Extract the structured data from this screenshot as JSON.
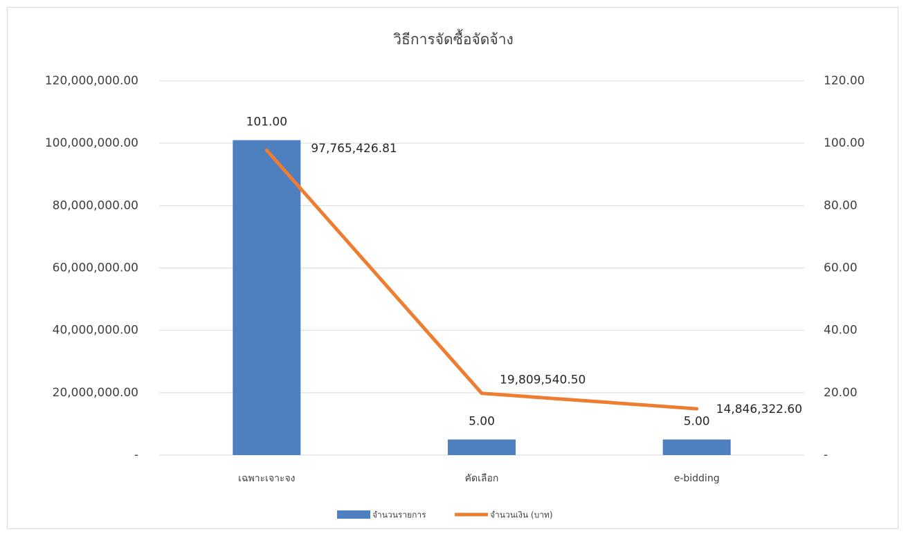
{
  "chart_data": {
    "type": "combo",
    "title": "วิธีการจัดซื้อจัดจ้าง",
    "categories": [
      "เฉพาะเจาะจง",
      "คัดเลือก",
      "e-bidding"
    ],
    "series": [
      {
        "name": "จำนวนรายการ",
        "type": "bar",
        "axis": "y2",
        "color": "#4e7fbf",
        "values": [
          101,
          5,
          5
        ],
        "value_labels": [
          "101.00",
          "5.00",
          "5.00"
        ]
      },
      {
        "name": "จำนวนเงิน (บาท)",
        "type": "line",
        "axis": "y",
        "color": "#ed7d31",
        "values": [
          97765426.81,
          19809540.5,
          14846322.6
        ],
        "value_labels": [
          "97,765,426.81",
          "19,809,540.50",
          "14,846,322.60"
        ]
      }
    ],
    "ylim": [
      0,
      120000000
    ],
    "yticks": [
      {
        "value": 0,
        "label": "-"
      },
      {
        "value": 20000000,
        "label": "20,000,000.00"
      },
      {
        "value": 40000000,
        "label": "40,000,000.00"
      },
      {
        "value": 60000000,
        "label": "60,000,000.00"
      },
      {
        "value": 80000000,
        "label": "80,000,000.00"
      },
      {
        "value": 100000000,
        "label": "100,000,000.00"
      },
      {
        "value": 120000000,
        "label": "120,000,000.00"
      }
    ],
    "y2lim": [
      0,
      120
    ],
    "y2ticks": [
      {
        "value": 0,
        "label": "-"
      },
      {
        "value": 20,
        "label": "20.00"
      },
      {
        "value": 40,
        "label": "40.00"
      },
      {
        "value": 60,
        "label": "60.00"
      },
      {
        "value": 80,
        "label": "80.00"
      },
      {
        "value": 100,
        "label": "100.00"
      },
      {
        "value": 120,
        "label": "120.00"
      }
    ],
    "grid": true,
    "legend": "bottom"
  }
}
